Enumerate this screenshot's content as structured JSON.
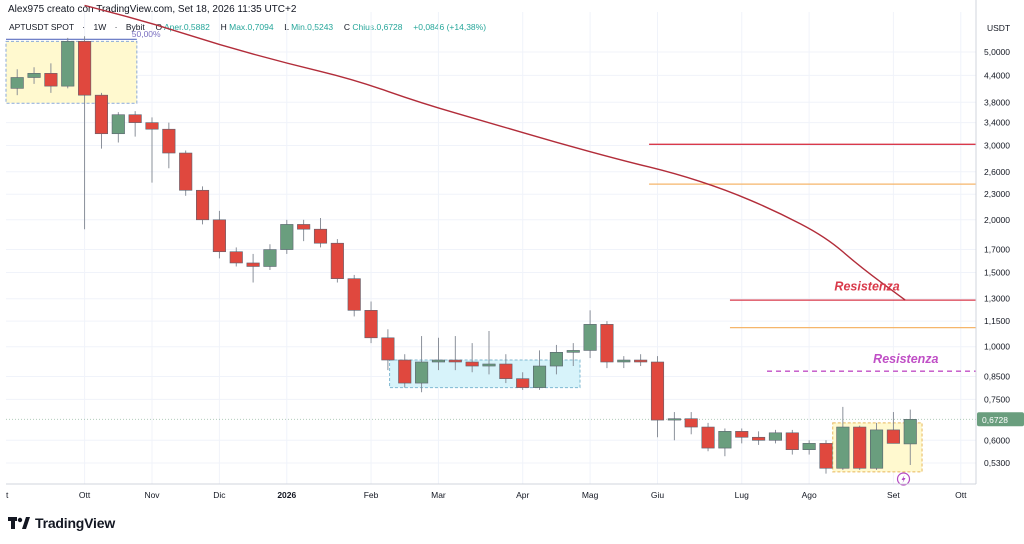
{
  "header": {
    "title": "Alex975 creato con TradingView.com, Set 18, 2026 11:35 UTC+2"
  },
  "symbol_info": {
    "pair": "APTUSDT SPOT",
    "interval": "1W",
    "exchange": "Bybit",
    "open_label": "O",
    "open": "Aper.0,5882",
    "high_label": "H",
    "high": "Max.0,7094",
    "low_label": "L",
    "low": "Min.0,5243",
    "close_label": "C",
    "close": "Chius.0,6728",
    "change": "+0,0846 (+14,38%)"
  },
  "branding": {
    "text": "TradingView"
  },
  "colors": {
    "up": "#6a9e7e",
    "down": "#e0483e",
    "ma": "#b22d3a",
    "resistance_red": "#d9394a",
    "resistance_orange": "#f5b66b",
    "resistance_purple": "#c04fc6",
    "price_badge": "#6a9e7e"
  },
  "chart_data": {
    "type": "candlestick",
    "currency_label": "USDT",
    "y_scale": "log",
    "y_ticks": [
      "5,0000",
      "4,4000",
      "3,8000",
      "3,4000",
      "3,0000",
      "2,6000",
      "2,3000",
      "2,0000",
      "1,7000",
      "1,5000",
      "1,3000",
      "1,1500",
      "1,0000",
      "0,8500",
      "0,7500",
      "0,6000",
      "0,5300"
    ],
    "y_tick_values": [
      5.0,
      4.4,
      3.8,
      3.4,
      3.0,
      2.6,
      2.3,
      2.0,
      1.7,
      1.5,
      1.3,
      1.15,
      1.0,
      0.85,
      0.75,
      0.6,
      0.53
    ],
    "x_ticks": [
      {
        "label": "t",
        "bold": false
      },
      {
        "label": "Ott",
        "bold": false
      },
      {
        "label": "Nov",
        "bold": false
      },
      {
        "label": "Dic",
        "bold": false
      },
      {
        "label": "2026",
        "bold": true
      },
      {
        "label": "Feb",
        "bold": false
      },
      {
        "label": "Mar",
        "bold": false
      },
      {
        "label": "Apr",
        "bold": false
      },
      {
        "label": "Mag",
        "bold": false
      },
      {
        "label": "Giu",
        "bold": false
      },
      {
        "label": "Lug",
        "bold": false
      },
      {
        "label": "Ago",
        "bold": false
      },
      {
        "label": "Set",
        "bold": false
      },
      {
        "label": "Ott",
        "bold": false
      }
    ],
    "x_tick_index": [
      -1,
      4,
      8,
      12,
      16,
      21,
      25,
      30,
      34,
      38,
      43,
      47,
      52,
      56
    ],
    "candles": [
      {
        "o": 4.1,
        "h": 4.55,
        "l": 3.95,
        "c": 4.35
      },
      {
        "o": 4.35,
        "h": 4.6,
        "l": 4.2,
        "c": 4.45
      },
      {
        "o": 4.45,
        "h": 4.7,
        "l": 4.0,
        "c": 4.15
      },
      {
        "o": 4.15,
        "h": 5.4,
        "l": 4.1,
        "c": 5.3
      },
      {
        "o": 5.3,
        "h": 5.45,
        "l": 1.9,
        "c": 3.95
      },
      {
        "o": 3.95,
        "h": 4.0,
        "l": 2.95,
        "c": 3.2
      },
      {
        "o": 3.2,
        "h": 3.6,
        "l": 3.05,
        "c": 3.55
      },
      {
        "o": 3.55,
        "h": 3.62,
        "l": 3.15,
        "c": 3.4
      },
      {
        "o": 3.4,
        "h": 3.5,
        "l": 2.45,
        "c": 3.28
      },
      {
        "o": 3.28,
        "h": 3.4,
        "l": 2.65,
        "c": 2.88
      },
      {
        "o": 2.88,
        "h": 2.92,
        "l": 2.28,
        "c": 2.35
      },
      {
        "o": 2.35,
        "h": 2.4,
        "l": 1.95,
        "c": 2.0
      },
      {
        "o": 2.0,
        "h": 2.1,
        "l": 1.62,
        "c": 1.68
      },
      {
        "o": 1.68,
        "h": 1.72,
        "l": 1.55,
        "c": 1.58
      },
      {
        "o": 1.58,
        "h": 1.66,
        "l": 1.42,
        "c": 1.55
      },
      {
        "o": 1.55,
        "h": 1.75,
        "l": 1.52,
        "c": 1.7
      },
      {
        "o": 1.7,
        "h": 2.0,
        "l": 1.66,
        "c": 1.95
      },
      {
        "o": 1.95,
        "h": 2.0,
        "l": 1.78,
        "c": 1.9
      },
      {
        "o": 1.9,
        "h": 2.02,
        "l": 1.72,
        "c": 1.76
      },
      {
        "o": 1.76,
        "h": 1.8,
        "l": 1.42,
        "c": 1.45
      },
      {
        "o": 1.45,
        "h": 1.48,
        "l": 1.18,
        "c": 1.22
      },
      {
        "o": 1.22,
        "h": 1.28,
        "l": 1.02,
        "c": 1.05
      },
      {
        "o": 1.05,
        "h": 1.1,
        "l": 0.88,
        "c": 0.93
      },
      {
        "o": 0.93,
        "h": 0.96,
        "l": 0.8,
        "c": 0.82
      },
      {
        "o": 0.82,
        "h": 1.06,
        "l": 0.78,
        "c": 0.92
      },
      {
        "o": 0.92,
        "h": 1.05,
        "l": 0.88,
        "c": 0.93
      },
      {
        "o": 0.93,
        "h": 1.06,
        "l": 0.88,
        "c": 0.92
      },
      {
        "o": 0.92,
        "h": 1.02,
        "l": 0.87,
        "c": 0.9
      },
      {
        "o": 0.9,
        "h": 1.09,
        "l": 0.86,
        "c": 0.91
      },
      {
        "o": 0.91,
        "h": 0.96,
        "l": 0.82,
        "c": 0.84
      },
      {
        "o": 0.84,
        "h": 0.87,
        "l": 0.79,
        "c": 0.8
      },
      {
        "o": 0.8,
        "h": 0.98,
        "l": 0.79,
        "c": 0.9
      },
      {
        "o": 0.9,
        "h": 1.01,
        "l": 0.86,
        "c": 0.97
      },
      {
        "o": 0.97,
        "h": 1.02,
        "l": 0.9,
        "c": 0.98
      },
      {
        "o": 0.98,
        "h": 1.22,
        "l": 0.94,
        "c": 1.13
      },
      {
        "o": 1.13,
        "h": 1.15,
        "l": 0.89,
        "c": 0.92
      },
      {
        "o": 0.92,
        "h": 0.95,
        "l": 0.89,
        "c": 0.93
      },
      {
        "o": 0.93,
        "h": 0.96,
        "l": 0.9,
        "c": 0.92
      },
      {
        "o": 0.92,
        "h": 0.95,
        "l": 0.61,
        "c": 0.67
      },
      {
        "o": 0.67,
        "h": 0.7,
        "l": 0.6,
        "c": 0.675
      },
      {
        "o": 0.675,
        "h": 0.7,
        "l": 0.62,
        "c": 0.645
      },
      {
        "o": 0.645,
        "h": 0.66,
        "l": 0.565,
        "c": 0.575
      },
      {
        "o": 0.575,
        "h": 0.64,
        "l": 0.55,
        "c": 0.63
      },
      {
        "o": 0.63,
        "h": 0.64,
        "l": 0.59,
        "c": 0.61
      },
      {
        "o": 0.61,
        "h": 0.63,
        "l": 0.585,
        "c": 0.6
      },
      {
        "o": 0.6,
        "h": 0.635,
        "l": 0.59,
        "c": 0.625
      },
      {
        "o": 0.625,
        "h": 0.635,
        "l": 0.555,
        "c": 0.57
      },
      {
        "o": 0.57,
        "h": 0.6,
        "l": 0.555,
        "c": 0.59
      },
      {
        "o": 0.59,
        "h": 0.6,
        "l": 0.5,
        "c": 0.515
      },
      {
        "o": 0.515,
        "h": 0.72,
        "l": 0.51,
        "c": 0.645
      },
      {
        "o": 0.645,
        "h": 0.65,
        "l": 0.51,
        "c": 0.515
      },
      {
        "o": 0.515,
        "h": 0.66,
        "l": 0.51,
        "c": 0.635
      },
      {
        "o": 0.635,
        "h": 0.7,
        "l": 0.59,
        "c": 0.59
      },
      {
        "o": 0.5882,
        "h": 0.7094,
        "l": 0.5243,
        "c": 0.6728
      }
    ],
    "moving_average": [
      {
        "i": 4,
        "v": 6.45
      },
      {
        "i": 8,
        "v": 5.85
      },
      {
        "i": 12,
        "v": 5.2
      },
      {
        "i": 16,
        "v": 4.7
      },
      {
        "i": 20,
        "v": 4.3
      },
      {
        "i": 24,
        "v": 3.78
      },
      {
        "i": 28,
        "v": 3.4
      },
      {
        "i": 32,
        "v": 3.05
      },
      {
        "i": 36,
        "v": 2.76
      },
      {
        "i": 39,
        "v": 2.58
      },
      {
        "i": 42,
        "v": 2.36
      },
      {
        "i": 45,
        "v": 2.1
      },
      {
        "i": 48,
        "v": 1.82
      },
      {
        "i": 50,
        "v": 1.55
      },
      {
        "i": 52.7,
        "v": 1.29
      }
    ],
    "horizontal_levels": [
      {
        "name": "res-red-top",
        "price": 3.02,
        "from": 37.5,
        "to": 58.5,
        "color": "#d9394a",
        "dash": false
      },
      {
        "name": "res-orange-top",
        "price": 2.43,
        "from": 37.5,
        "to": 58.5,
        "color": "#f5b66b",
        "dash": false
      },
      {
        "name": "res-red-mid",
        "price": 1.29,
        "from": 42.3,
        "to": 58.5,
        "color": "#d9394a",
        "dash": false
      },
      {
        "name": "res-orange-mid",
        "price": 1.11,
        "from": 42.3,
        "to": 58.5,
        "color": "#f5b66b",
        "dash": false
      },
      {
        "name": "res-purple",
        "price": 0.875,
        "from": 44.5,
        "to": 58.5,
        "color": "#c04fc6",
        "dash": true
      }
    ],
    "annotations": [
      {
        "name": "resistenza-red-label",
        "text": "Resistenza",
        "i": 48.5,
        "price": 1.36,
        "color": "#d9394a"
      },
      {
        "name": "resistenza-purple-label",
        "text": "Resistenza",
        "i": 50.8,
        "price": 0.915,
        "color": "#c04fc6"
      },
      {
        "name": "fib-label",
        "text": "50,00%",
        "i": 6.8,
        "price": 5.42,
        "color": "#7a6fc0"
      }
    ],
    "boxes": [
      {
        "name": "box-top-left",
        "i1": -1,
        "i2": 7.1,
        "p_top": 5.3,
        "p_bot": 3.78,
        "fill": "#fff9cf",
        "stroke": "#8aa9d9"
      },
      {
        "name": "box-mid",
        "i1": 22.1,
        "i2": 33.4,
        "p_top": 0.93,
        "p_bot": 0.8,
        "fill": "#d7f3fa",
        "stroke": "#7fb9d2"
      },
      {
        "name": "box-bottom-right",
        "i1": 48.4,
        "i2": 53.7,
        "p_top": 0.66,
        "p_bot": 0.505,
        "fill": "#fff9cf",
        "stroke": "#e8b85c"
      }
    ],
    "last_price": {
      "value": 0.6728,
      "label": "0,6728"
    }
  }
}
